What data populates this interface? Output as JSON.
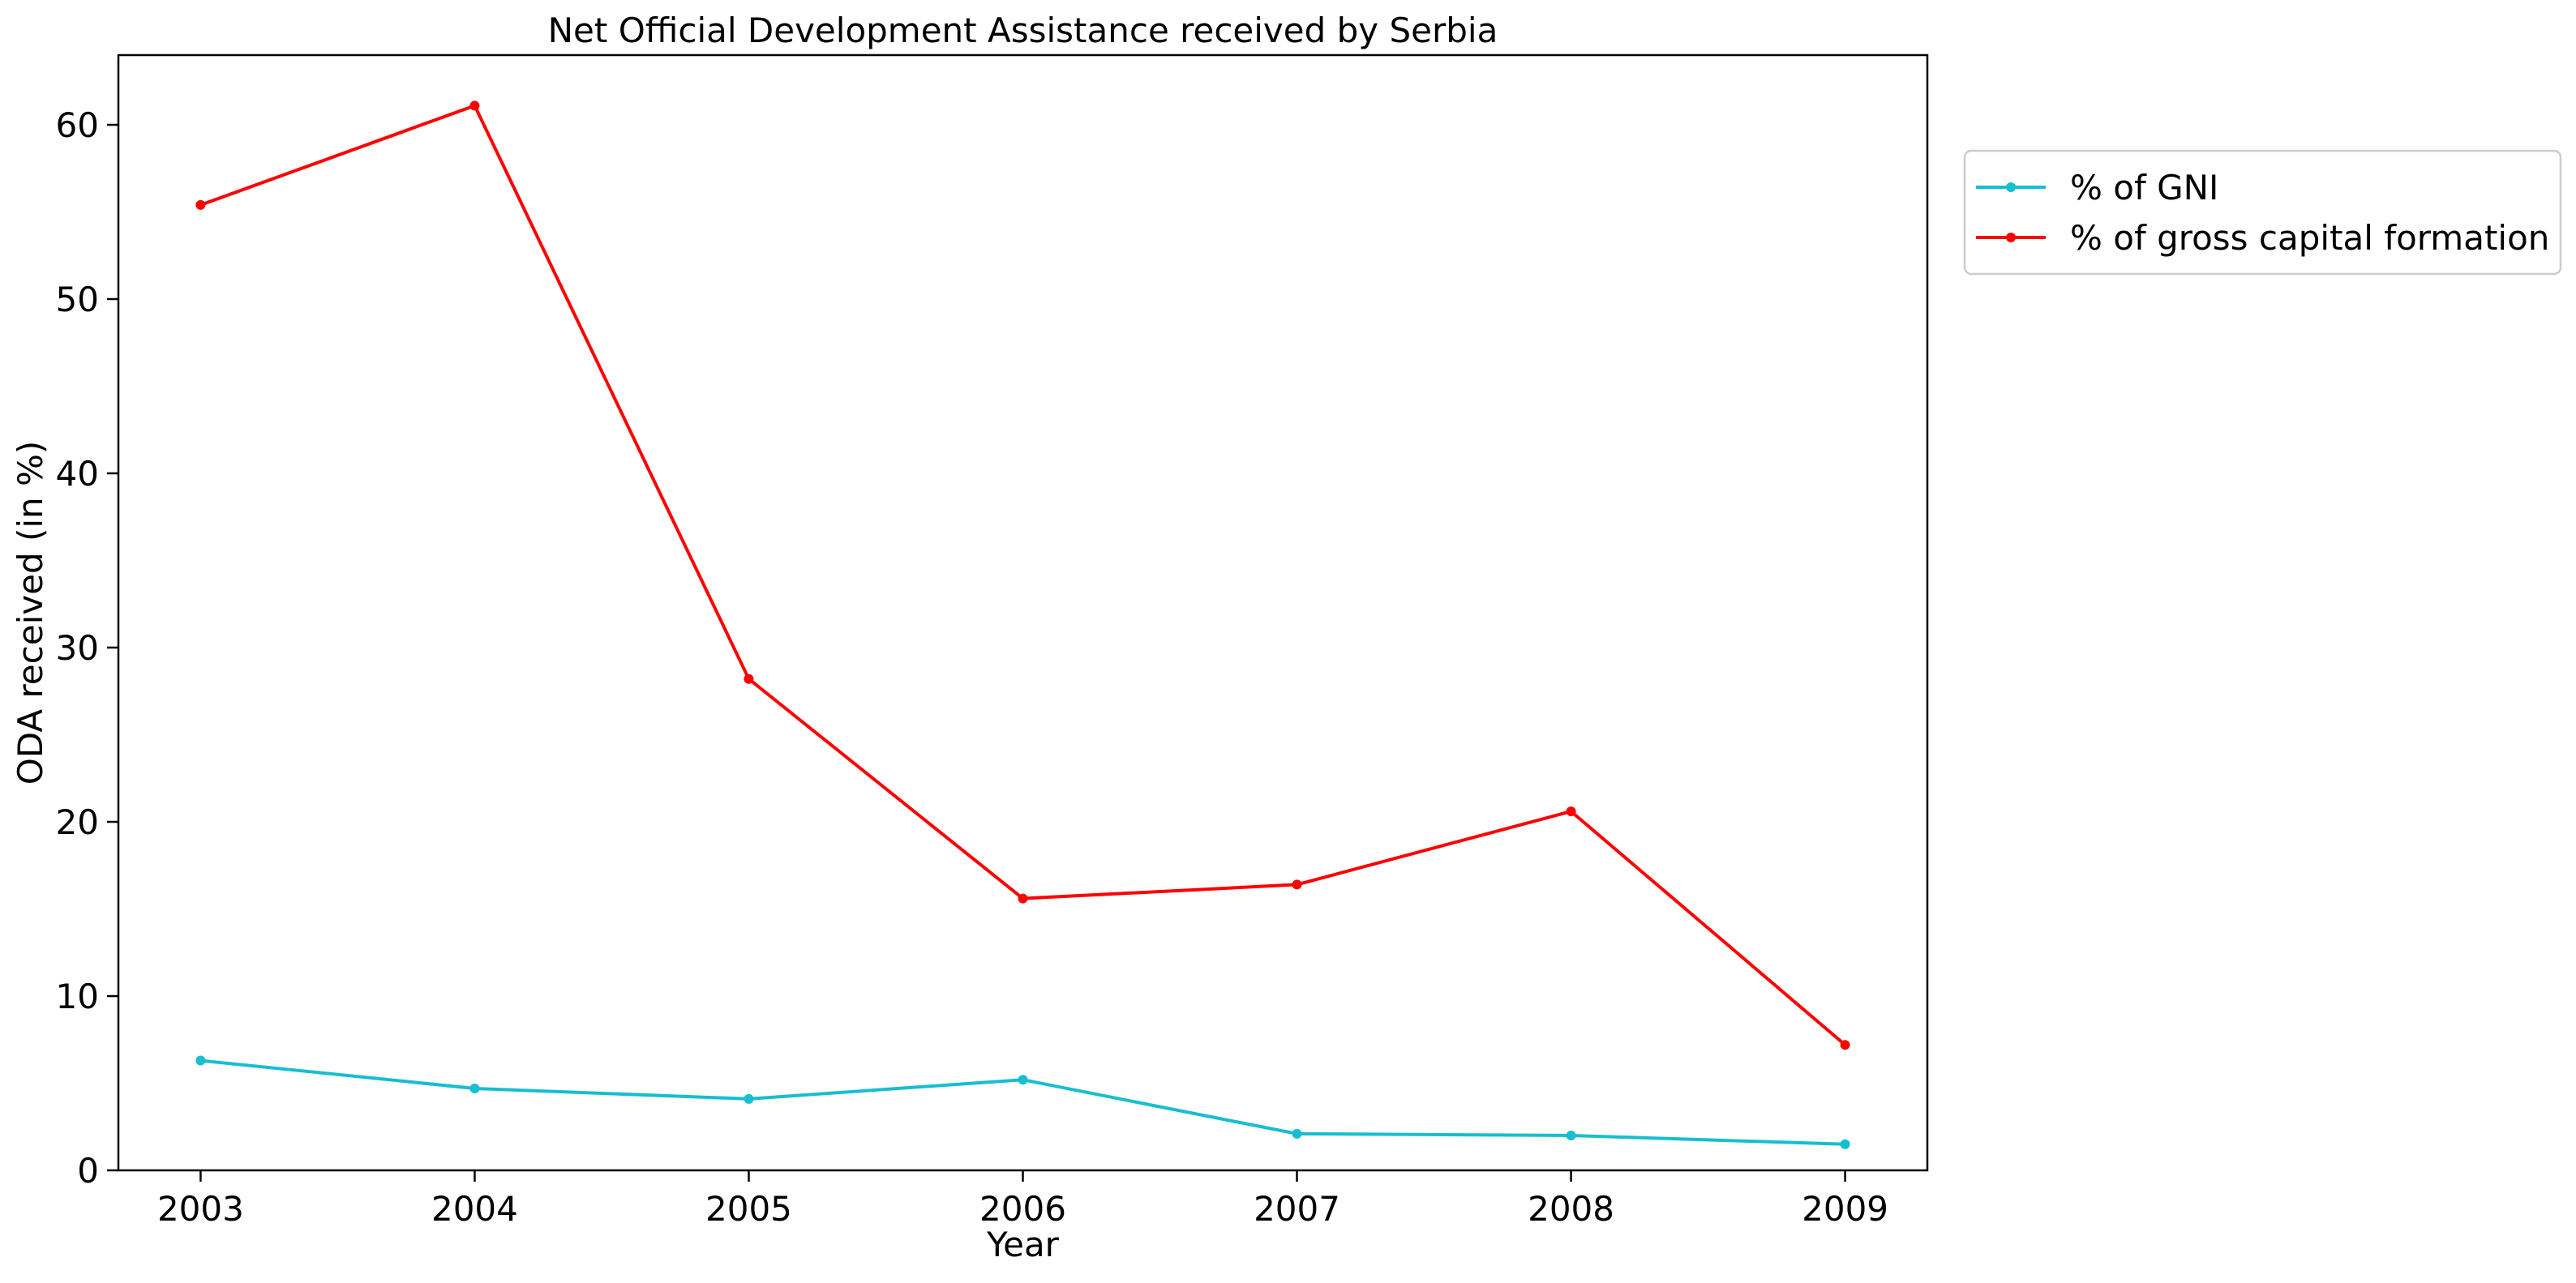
{
  "chart_data": {
    "type": "line",
    "title": "Net Official Development Assistance received by Serbia",
    "xlabel": "Year",
    "ylabel": "ODA received (in %)",
    "categories": [
      "2003",
      "2004",
      "2005",
      "2006",
      "2007",
      "2008",
      "2009"
    ],
    "x": [
      2003,
      2004,
      2005,
      2006,
      2007,
      2008,
      2009
    ],
    "ylim": [
      0,
      64
    ],
    "yticks": [
      0,
      10,
      20,
      30,
      40,
      50,
      60
    ],
    "grid": false,
    "legend_position": "outside upper right",
    "series": [
      {
        "name": "% of GNI",
        "color": "#17becf",
        "values": [
          6.3,
          4.7,
          4.1,
          5.2,
          2.1,
          2.0,
          1.5
        ]
      },
      {
        "name": "% of gross capital formation",
        "color": "#ff0000",
        "values": [
          55.4,
          61.1,
          28.2,
          15.6,
          16.4,
          20.6,
          7.2
        ]
      }
    ]
  }
}
